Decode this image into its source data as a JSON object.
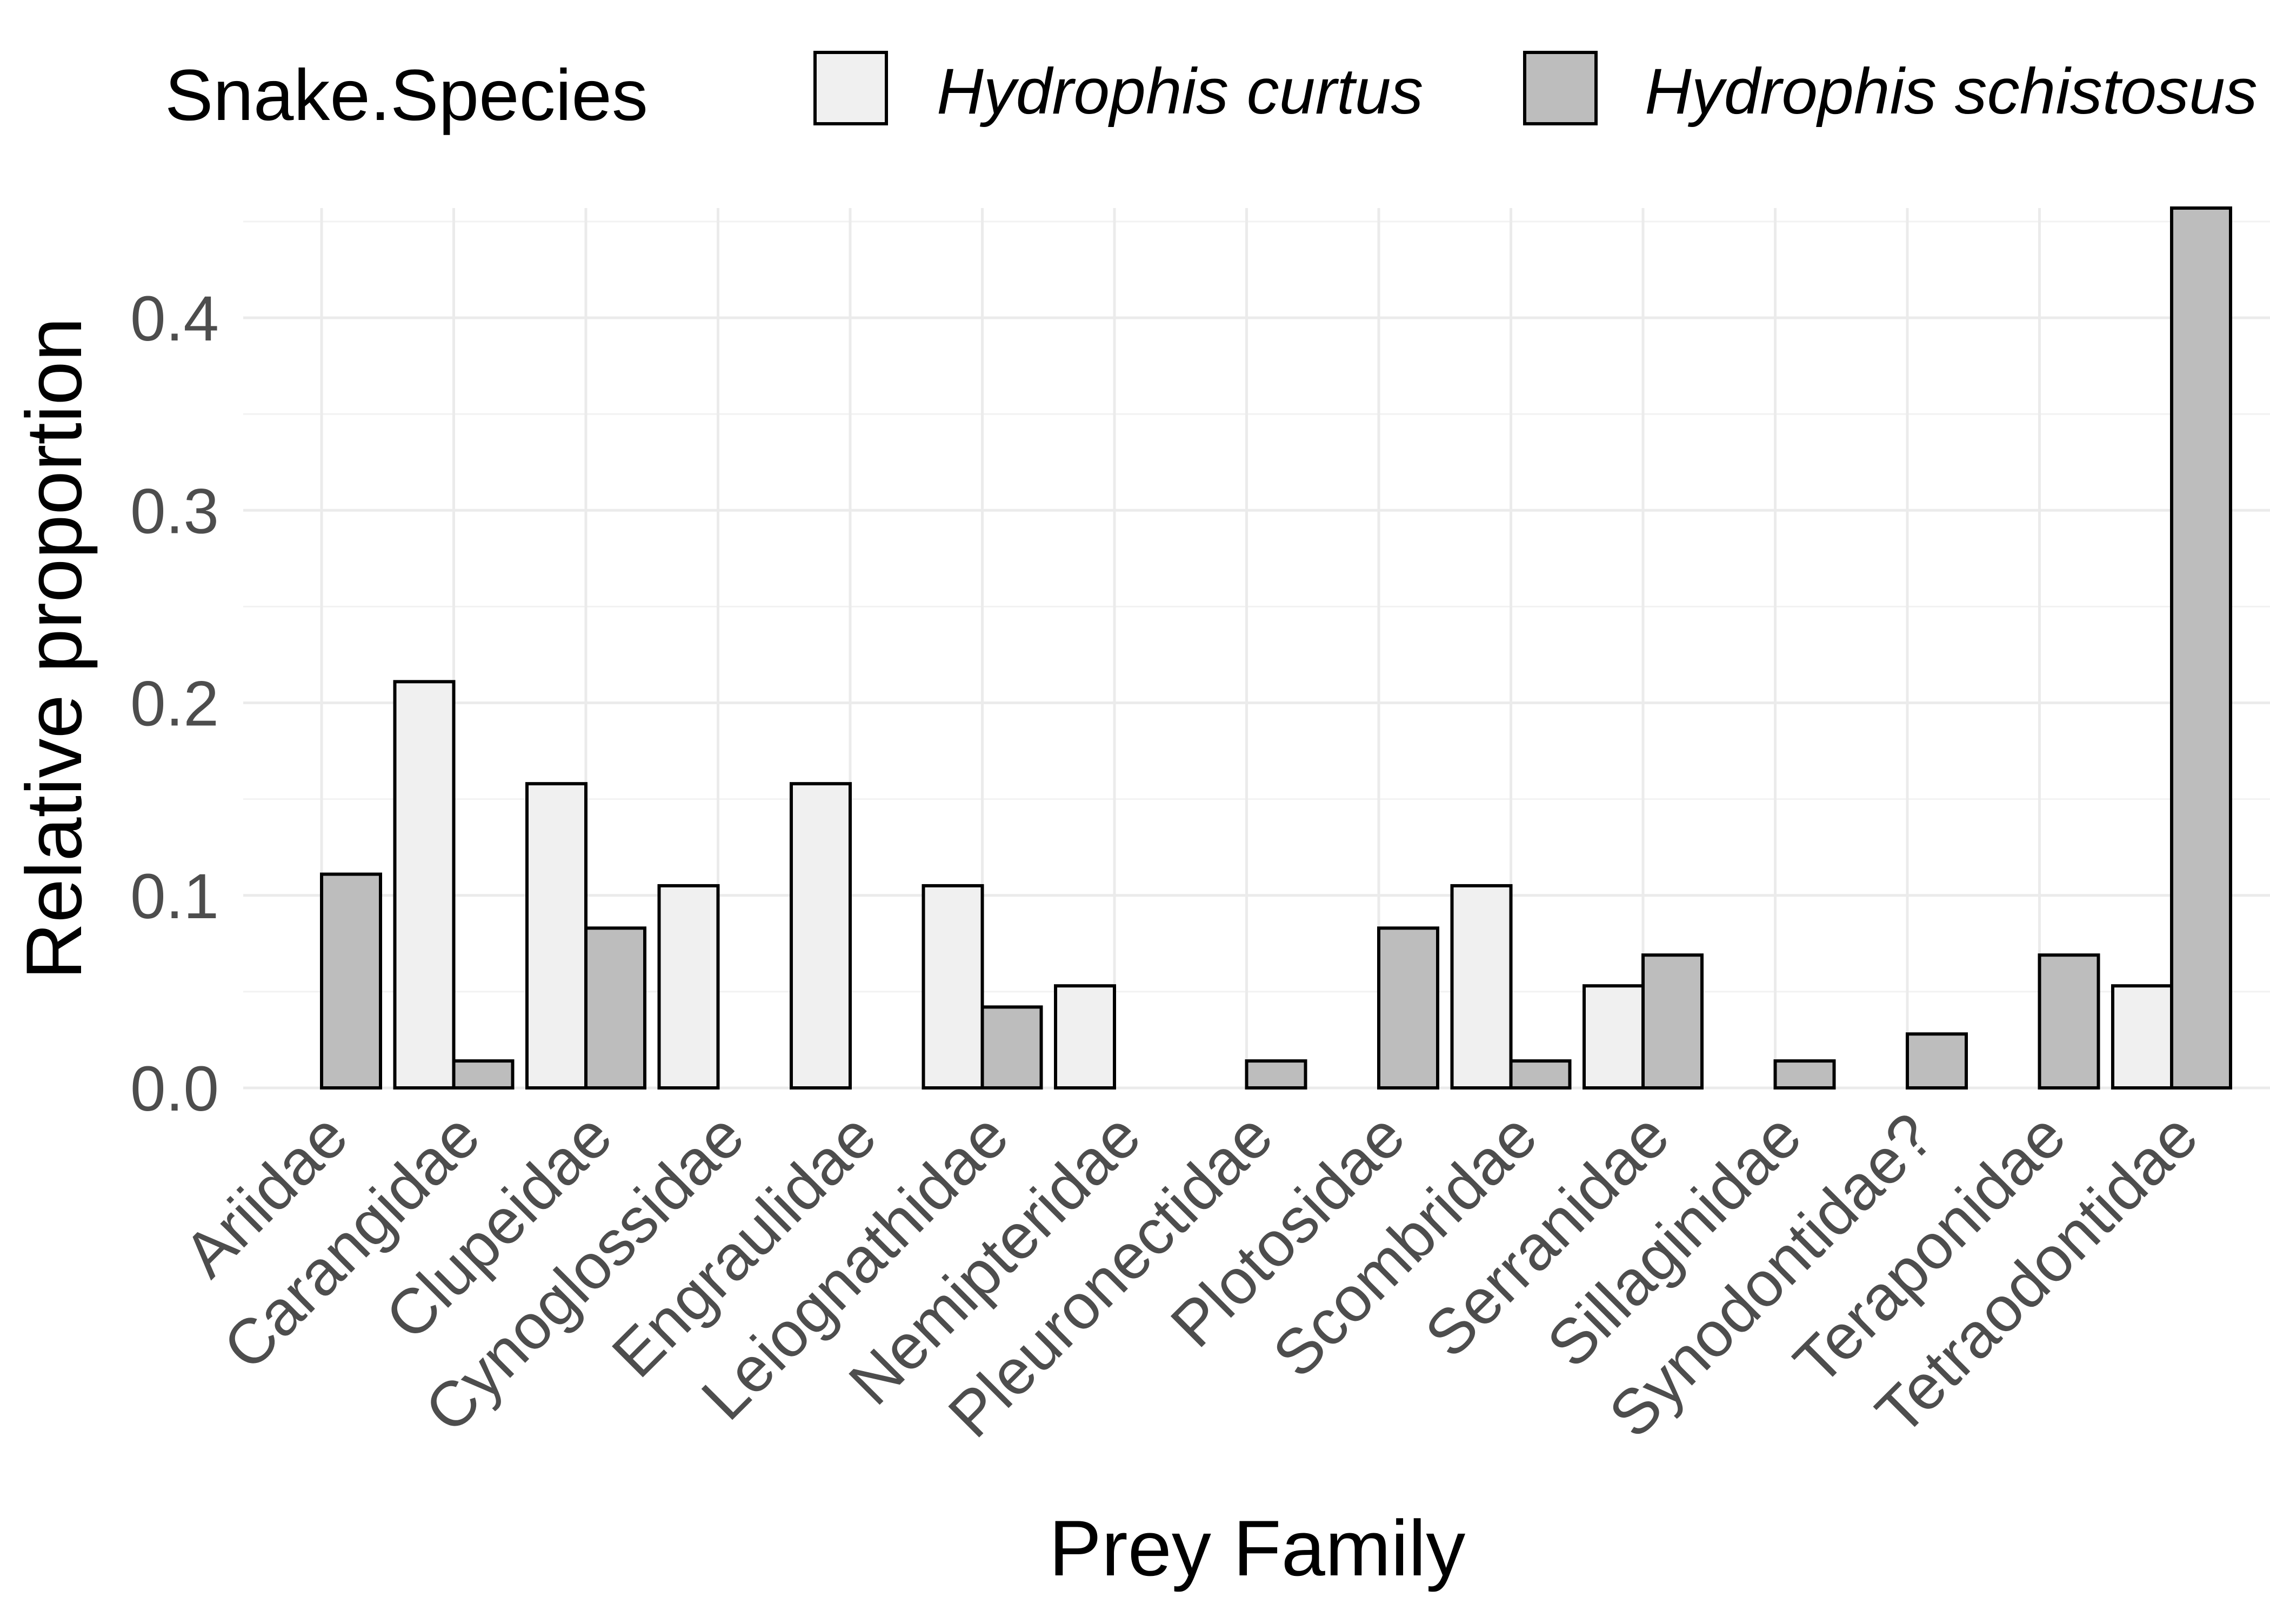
{
  "chart_data": {
    "type": "bar",
    "xlabel": "Prey Family",
    "ylabel": "Relative proportion",
    "ylim": [
      0,
      0.457
    ],
    "yticks": [
      0.0,
      0.1,
      0.2,
      0.3,
      0.4
    ],
    "ytick_labels": [
      "0.0",
      "0.1",
      "0.2",
      "0.3",
      "0.4"
    ],
    "grid": true,
    "legend": {
      "title": "Snake.Species",
      "position": "top",
      "entries": [
        "Hydrophis curtus",
        "Hydrophis schistosus"
      ]
    },
    "categories": [
      "Ariidae",
      "Carangidae",
      "Clupeidae",
      "Cynoglossidae",
      "Engraulidae",
      "Leiognathidae",
      "Nemipteridae",
      "Pleuronectidae",
      "Plotosidae",
      "Scombridae",
      "Serranidae",
      "Sillaginidae",
      "Synodontidae?",
      "Teraponidae",
      "Tetraodontidae"
    ],
    "series": [
      {
        "name": "Hydrophis curtus",
        "color": "#f0f0f0",
        "values": [
          null,
          0.211,
          0.158,
          0.105,
          0.158,
          0.105,
          0.053,
          null,
          null,
          0.105,
          0.053,
          null,
          null,
          null,
          0.053
        ]
      },
      {
        "name": "Hydrophis schistosus",
        "color": "#bdbdbd",
        "values": [
          0.111,
          0.014,
          0.083,
          null,
          null,
          0.042,
          null,
          0.014,
          0.083,
          0.014,
          0.069,
          0.014,
          0.028,
          0.069,
          0.458
        ]
      }
    ]
  }
}
